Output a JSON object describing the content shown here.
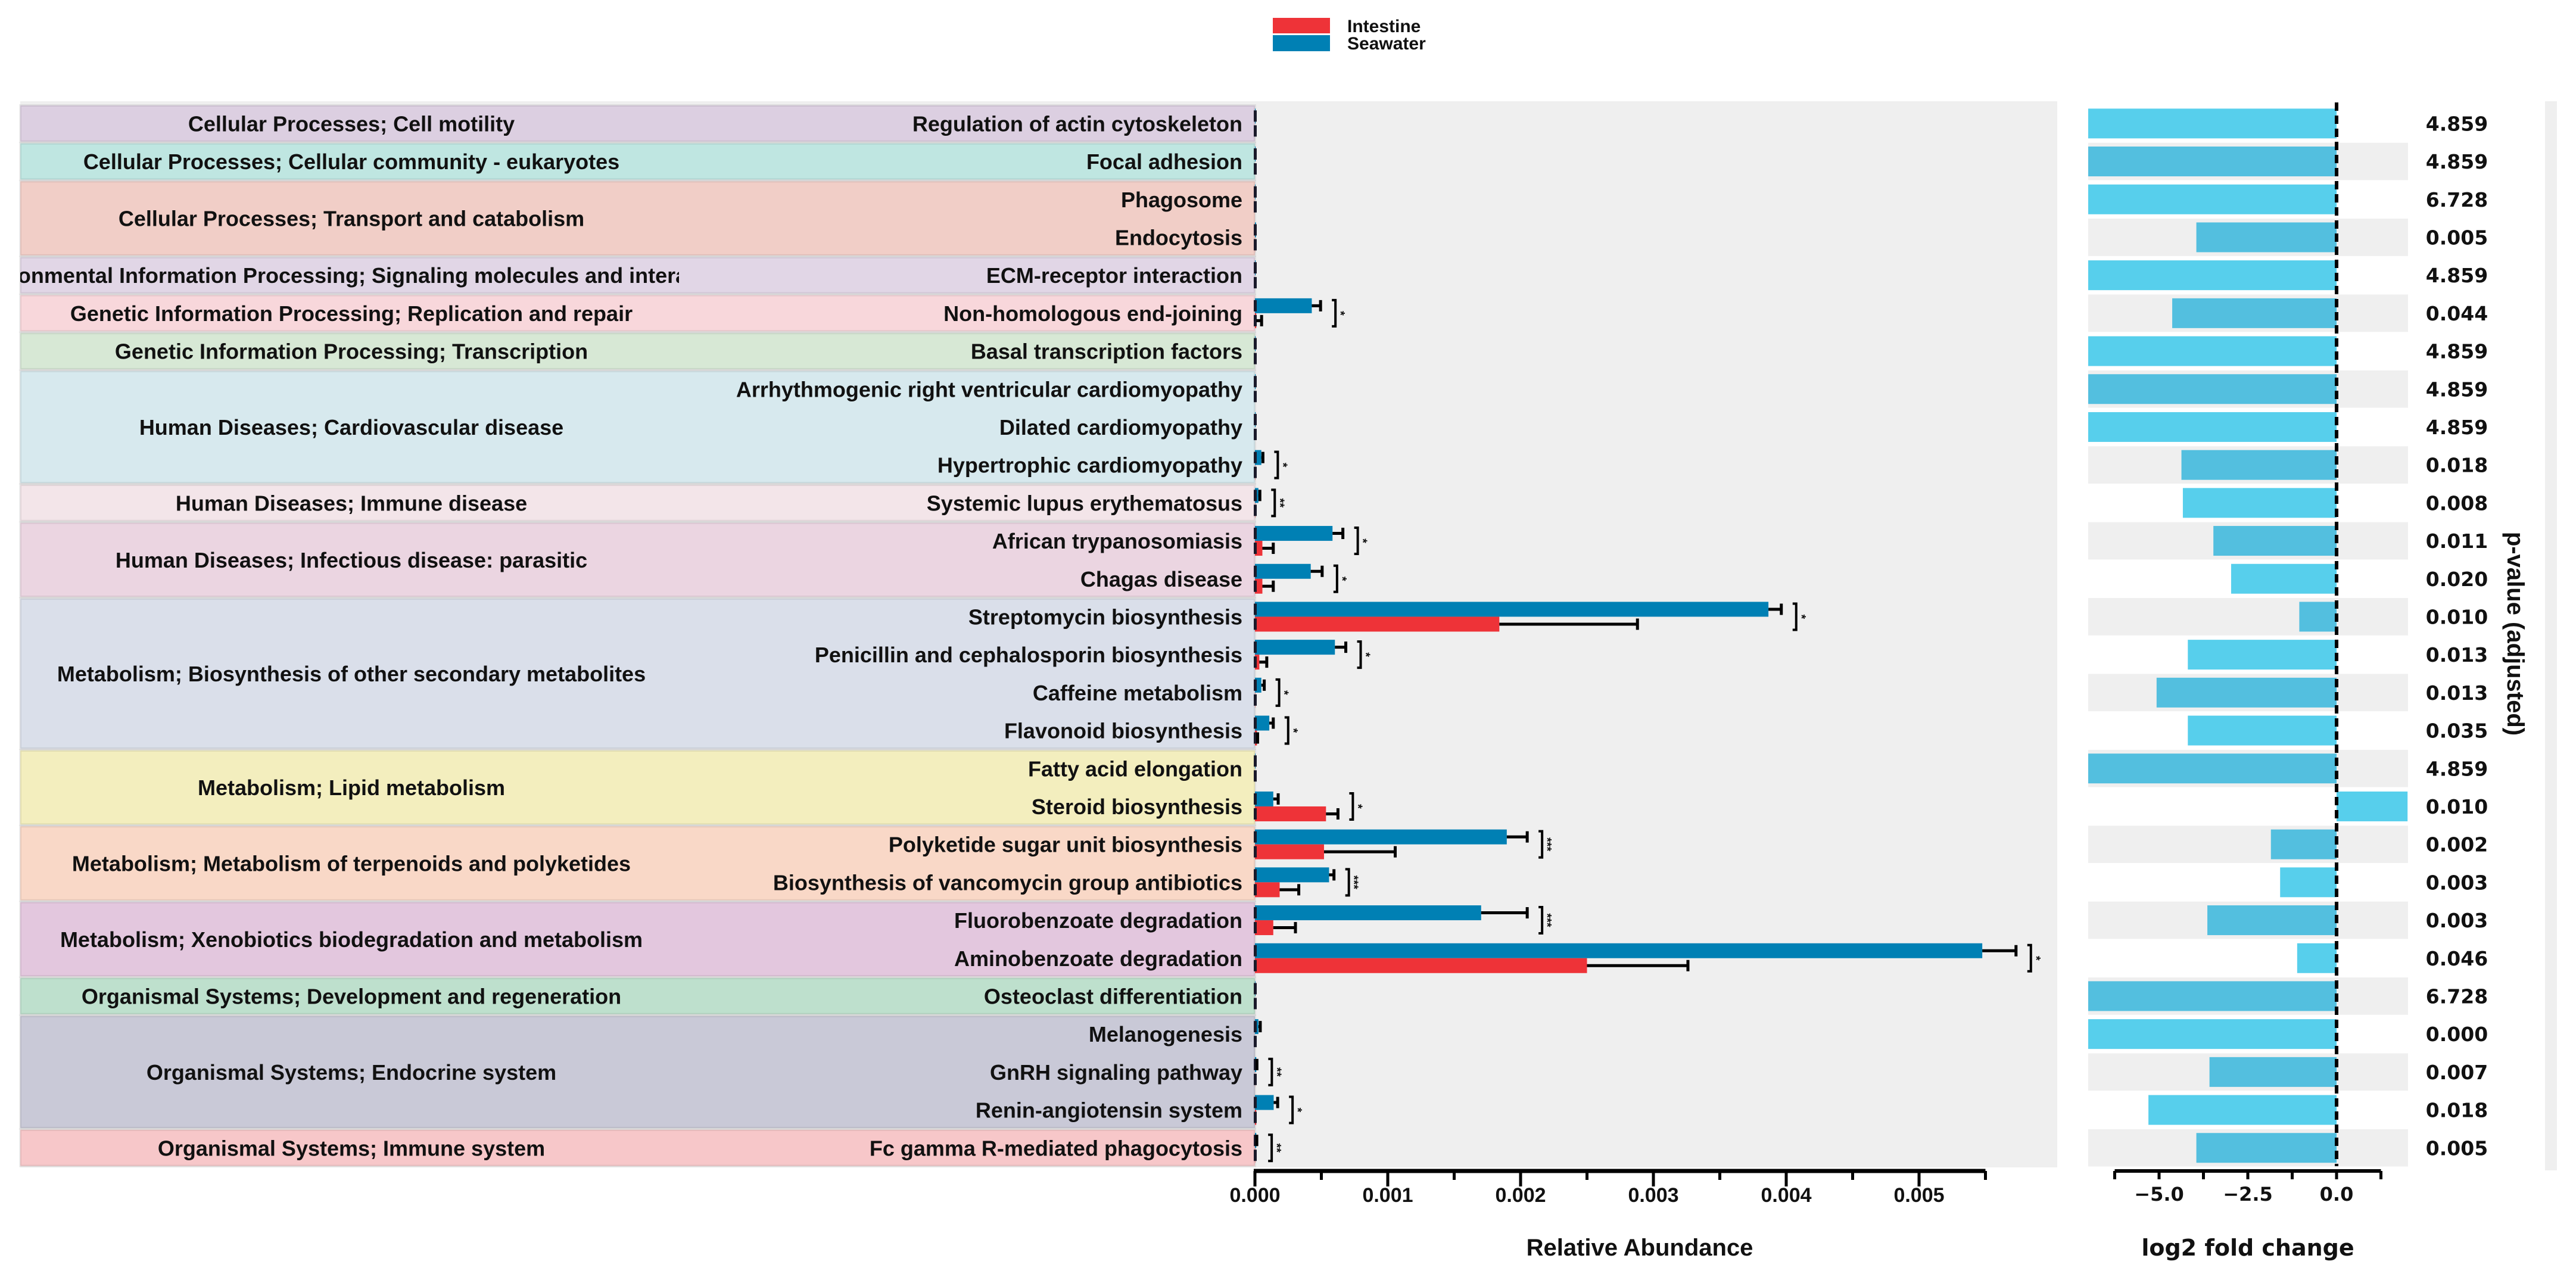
{
  "chart_data": {
    "type": "bar",
    "legend": {
      "position": "top-center",
      "entries": [
        {
          "name": "Intestine",
          "color": "#ee3338"
        },
        {
          "name": "Seawater",
          "color": "#0080b4"
        }
      ]
    },
    "left_chart": {
      "xlabel": "Relative Abundance",
      "xlim": [
        0,
        0.0055
      ],
      "ticks": [
        "0.000",
        "0.001",
        "0.002",
        "0.003",
        "0.004",
        "0.005"
      ],
      "tick_values": [
        0,
        0.001,
        0.002,
        0.003,
        0.004,
        0.005
      ]
    },
    "right_chart": {
      "xlabel": "log2 fold change",
      "ylabel": "p-value (adjusted)",
      "xlim": [
        -7,
        2
      ],
      "ticks": [
        "−5.0",
        "−2.5",
        "0.0"
      ],
      "tick_values": [
        -5,
        -2.5,
        0
      ],
      "bar_colors": [
        "#57cfec",
        "#53bfdf"
      ]
    },
    "groups": [
      {
        "name": "Cellular Processes; Cell motility",
        "count": 1,
        "color": "#dccfe1"
      },
      {
        "name": "Cellular Processes; Cellular community - eukaryotes",
        "count": 1,
        "color": "#bfe6e1"
      },
      {
        "name": "Cellular Processes; Transport and catabolism",
        "count": 2,
        "color": "#f1cec7"
      },
      {
        "name": "Environmental Information Processing; Signaling molecules and interaction",
        "count": 1,
        "color": "#e1d6e6"
      },
      {
        "name": "Genetic Information Processing; Replication and repair",
        "count": 1,
        "color": "#f8d7db"
      },
      {
        "name": "Genetic Information Processing; Transcription",
        "count": 1,
        "color": "#d7e8d5"
      },
      {
        "name": "Human Diseases; Cardiovascular disease",
        "count": 3,
        "color": "#d7e9ee"
      },
      {
        "name": "Human Diseases; Immune disease",
        "count": 1,
        "color": "#f3e5e9"
      },
      {
        "name": "Human Diseases; Infectious disease: parasitic",
        "count": 2,
        "color": "#ebd5e1"
      },
      {
        "name": "Metabolism; Biosynthesis of other secondary metabolites",
        "count": 4,
        "color": "#dadfea"
      },
      {
        "name": "Metabolism; Lipid metabolism",
        "count": 2,
        "color": "#f3eebe"
      },
      {
        "name": "Metabolism; Metabolism of terpenoids and polyketides",
        "count": 2,
        "color": "#f9d8c7"
      },
      {
        "name": "Metabolism; Xenobiotics biodegradation and metabolism",
        "count": 2,
        "color": "#e3c7de"
      },
      {
        "name": "Organismal Systems; Development and regeneration",
        "count": 1,
        "color": "#bee0cd"
      },
      {
        "name": "Organismal Systems; Endocrine system",
        "count": 3,
        "color": "#c9c9d7"
      },
      {
        "name": "Organismal Systems; Immune system",
        "count": 1,
        "color": "#f7c7c9"
      }
    ],
    "rows": [
      {
        "pathway": "Regulation of actin cytoskeleton",
        "seawater": 5e-06,
        "seawater_err": 8e-06,
        "intestine": 0,
        "intestine_err": 0,
        "sig": "",
        "log2fc": -7,
        "pvalue": "4.859"
      },
      {
        "pathway": "Focal adhesion",
        "seawater": 5e-06,
        "seawater_err": 8e-06,
        "intestine": 0,
        "intestine_err": 0,
        "sig": "",
        "log2fc": -7,
        "pvalue": "4.859"
      },
      {
        "pathway": "Phagosome",
        "seawater": 4e-06,
        "seawater_err": 6e-06,
        "intestine": 0,
        "intestine_err": 0,
        "sig": "",
        "log2fc": -7,
        "pvalue": "6.728"
      },
      {
        "pathway": "Endocytosis",
        "seawater": 8e-06,
        "seawater_err": 1e-05,
        "intestine": 1e-06,
        "intestine_err": 2e-06,
        "sig": "",
        "log2fc": -3.95,
        "pvalue": "0.005"
      },
      {
        "pathway": "ECM-receptor interaction",
        "seawater": 5e-06,
        "seawater_err": 8e-06,
        "intestine": 0,
        "intestine_err": 0,
        "sig": "",
        "log2fc": -7,
        "pvalue": "4.859"
      },
      {
        "pathway": "Non-homologous end-joining",
        "seawater": 0.000428,
        "seawater_err": 0.000494,
        "intestine": 1e-05,
        "intestine_err": 5e-05,
        "sig": "*",
        "log2fc": -4.63,
        "pvalue": "0.044"
      },
      {
        "pathway": "Basal transcription factors",
        "seawater": 5e-06,
        "seawater_err": 8e-06,
        "intestine": 0,
        "intestine_err": 0,
        "sig": "",
        "log2fc": -7,
        "pvalue": "4.859"
      },
      {
        "pathway": "Arrhythmogenic right ventricular cardiomyopathy",
        "seawater": 5e-06,
        "seawater_err": 8e-06,
        "intestine": 0,
        "intestine_err": 0,
        "sig": "",
        "log2fc": -7,
        "pvalue": "4.859"
      },
      {
        "pathway": "Dilated cardiomyopathy",
        "seawater": 5e-06,
        "seawater_err": 8e-06,
        "intestine": 0,
        "intestine_err": 0,
        "sig": "",
        "log2fc": -7,
        "pvalue": "4.859"
      },
      {
        "pathway": "Hypertrophic cardiomyopathy",
        "seawater": 4.8e-05,
        "seawater_err": 6e-05,
        "intestine": 2e-06,
        "intestine_err": 3e-06,
        "sig": "*",
        "log2fc": -4.37,
        "pvalue": "0.018"
      },
      {
        "pathway": "Systemic lupus erythematosus",
        "seawater": 2.6e-05,
        "seawater_err": 3.7e-05,
        "intestine": 2e-06,
        "intestine_err": 3e-06,
        "sig": "**",
        "log2fc": -4.33,
        "pvalue": "0.008"
      },
      {
        "pathway": "African trypanosomiasis",
        "seawater": 0.000584,
        "seawater_err": 0.000662,
        "intestine": 5.6e-05,
        "intestine_err": 0.000138,
        "sig": "*",
        "log2fc": -3.47,
        "pvalue": "0.011"
      },
      {
        "pathway": "Chagas disease",
        "seawater": 0.00042,
        "seawater_err": 0.000506,
        "intestine": 5.6e-05,
        "intestine_err": 0.000138,
        "sig": "*",
        "log2fc": -2.97,
        "pvalue": "0.020"
      },
      {
        "pathway": "Streptomycin biosynthesis",
        "seawater": 0.003866,
        "seawater_err": 0.003963,
        "intestine": 0.00184,
        "intestine_err": 0.00288,
        "sig": "*",
        "log2fc": -1.05,
        "pvalue": "0.010"
      },
      {
        "pathway": "Penicillin and cephalosporin biosynthesis",
        "seawater": 0.000602,
        "seawater_err": 0.000684,
        "intestine": 3.3e-05,
        "intestine_err": 8.9e-05,
        "sig": "*",
        "log2fc": -4.19,
        "pvalue": "0.013"
      },
      {
        "pathway": "Caffeine metabolism",
        "seawater": 4.8e-05,
        "seawater_err": 7e-05,
        "intestine": 2e-06,
        "intestine_err": 3e-06,
        "sig": "*",
        "log2fc": -5.07,
        "pvalue": "0.013"
      },
      {
        "pathway": "Flavonoid biosynthesis",
        "seawater": 0.000108,
        "seawater_err": 0.000138,
        "intestine": 1.5e-05,
        "intestine_err": 2e-05,
        "sig": "*",
        "log2fc": -4.19,
        "pvalue": "0.035"
      },
      {
        "pathway": "Fatty acid elongation",
        "seawater": 4e-06,
        "seawater_err": 6e-06,
        "intestine": 0,
        "intestine_err": 0,
        "sig": "",
        "log2fc": -7,
        "pvalue": "4.859"
      },
      {
        "pathway": "Steroid biosynthesis",
        "seawater": 0.000138,
        "seawater_err": 0.000175,
        "intestine": 0.000535,
        "intestine_err": 0.000625,
        "sig": "*",
        "log2fc": 2,
        "pvalue": "0.010"
      },
      {
        "pathway": "Polyketide sugar unit biosynthesis",
        "seawater": 0.001896,
        "seawater_err": 0.00205,
        "intestine": 0.00052,
        "intestine_err": 0.001056,
        "sig": "***",
        "log2fc": -1.85,
        "pvalue": "0.002"
      },
      {
        "pathway": "Biosynthesis of vancomycin group antibiotics",
        "seawater": 0.000558,
        "seawater_err": 0.000595,
        "intestine": 0.000186,
        "intestine_err": 0.00033,
        "sig": "***",
        "log2fc": -1.59,
        "pvalue": "0.003"
      },
      {
        "pathway": "Fluorobenzoate degradation",
        "seawater": 0.001703,
        "seawater_err": 0.00205,
        "intestine": 0.000138,
        "intestine_err": 0.000305,
        "sig": "***",
        "log2fc": -3.64,
        "pvalue": "0.003"
      },
      {
        "pathway": "Aminobenzoate degradation",
        "seawater": 0.005476,
        "seawater_err": 0.00573,
        "intestine": 0.0025,
        "intestine_err": 0.00326,
        "sig": "*",
        "log2fc": -1.11,
        "pvalue": "0.046"
      },
      {
        "pathway": "Osteoclast differentiation",
        "seawater": 4e-06,
        "seawater_err": 6e-06,
        "intestine": 0,
        "intestine_err": 0,
        "sig": "",
        "log2fc": -7,
        "pvalue": "6.728"
      },
      {
        "pathway": "Melanogenesis",
        "seawater": 2.6e-05,
        "seawater_err": 4e-05,
        "intestine": 0,
        "intestine_err": 0,
        "sig": "",
        "log2fc": -7,
        "pvalue": "0.000"
      },
      {
        "pathway": "GnRH signaling pathway",
        "seawater": 1e-05,
        "seawater_err": 1.5e-05,
        "intestine": 1e-06,
        "intestine_err": 2e-06,
        "sig": "**",
        "log2fc": -3.58,
        "pvalue": "0.007"
      },
      {
        "pathway": "Renin-angiotensin system",
        "seawater": 0.000141,
        "seawater_err": 0.000171,
        "intestine": 1e-05,
        "intestine_err": 1.2e-05,
        "sig": "*",
        "log2fc": -5.3,
        "pvalue": "0.018"
      },
      {
        "pathway": "Fc gamma R-mediated phagocytosis",
        "seawater": 1e-05,
        "seawater_err": 1.4e-05,
        "intestine": 2e-06,
        "intestine_err": 3e-06,
        "sig": "**",
        "log2fc": -3.95,
        "pvalue": "0.005"
      }
    ]
  }
}
